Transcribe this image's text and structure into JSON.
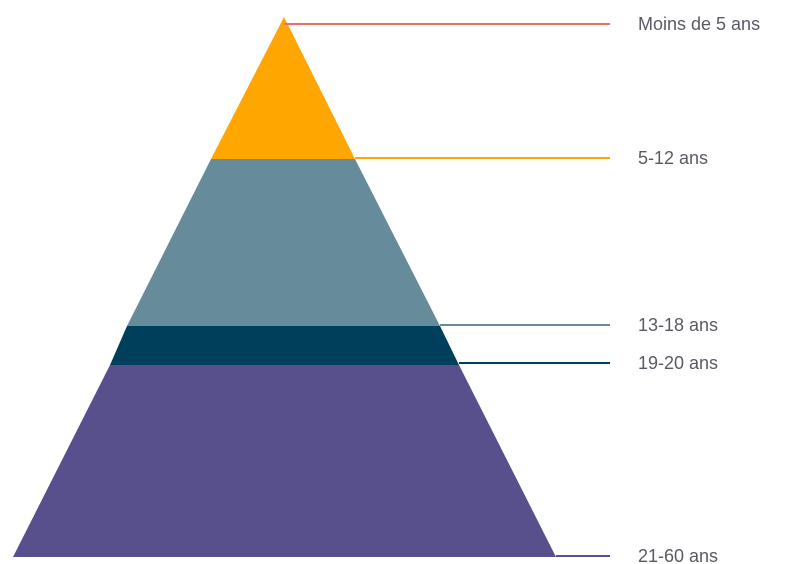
{
  "layers": [
    {
      "label": "Moins de 5 ans",
      "color": "#FFA600",
      "leader_color": "#EF6F6C"
    },
    {
      "label": "5-12 ans",
      "color": "#668C9C",
      "leader_color": "#FFA600"
    },
    {
      "label": "13-18 ans",
      "color": "#003F5C",
      "leader_color": "#668C9C"
    },
    {
      "label": "19-20 ans",
      "color": "#58508D",
      "leader_color": "#003F5C"
    },
    {
      "label": "21-60 ans",
      "color": "#58508D",
      "leader_color": "#58508D"
    }
  ]
}
